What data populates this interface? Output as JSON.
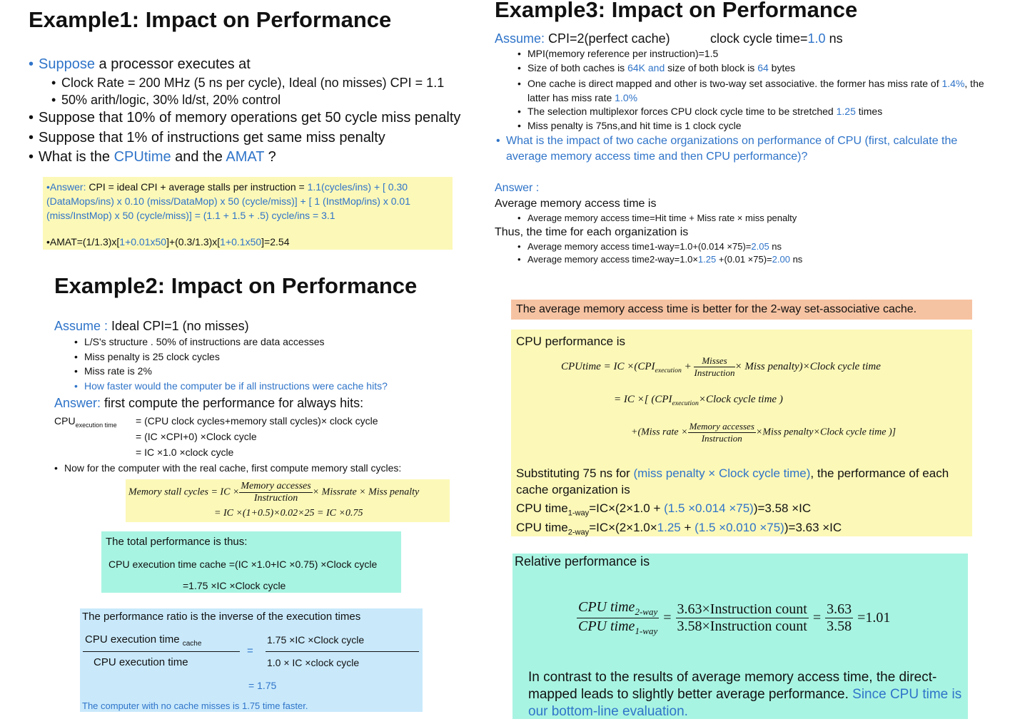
{
  "example1": {
    "title": "Example1: Impact on Performance",
    "lines": [
      [
        "Suppose",
        " a processor executes at"
      ],
      [
        "Clock Rate = 200 MHz (5 ns per cycle), Ideal (no misses) CPI = 1.1"
      ],
      [
        "50% arith/logic, 30% ld/st, 20% control"
      ],
      [
        "Suppose that 10% of memory operations get 50 cycle miss penalty"
      ],
      [
        "Suppose that 1% of instructions get same miss penalty"
      ],
      [
        "What is the ",
        "CPUtime",
        " and the ",
        "AMAT",
        " ?"
      ]
    ],
    "answer": [
      "•Answer:",
      " CPI = ideal CPI + average stalls per instruction = ",
      "1.1(cycles/ins)  + [ 0.30 (DataMops/ins) x 0.10 (miss/DataMop) x 50 (cycle/miss)]  + [ 1 (InstMop/ins) x 0.01 (miss/InstMop) x 50 (cycle/miss)] = (1.1 +  1.5 + .5) cycle/ins = 3.1"
    ],
    "amat": [
      "•AMAT=(1/1.3)x[",
      "1+0.01x50",
      "]+(0.3/1.3)x[",
      "1+0.1x50",
      "]=2.54"
    ]
  },
  "example2": {
    "title": "Example2: Impact on Performance",
    "assume": [
      "Assume :",
      " Ideal CPI=1 (no misses)"
    ],
    "bullets": [
      "L/S's structure . 50% of instructions are data accesses",
      "Miss penalty is 25 clock cycles",
      "Miss rate is 2%",
      "How faster would the computer be if all instructions were cache hits?"
    ],
    "answer": [
      "Answer:",
      " first compute the performance for always hits:"
    ],
    "cpu_label": [
      "CPU",
      "execution time"
    ],
    "equations": [
      "= (CPU clock cycles+memory stall cycles)× clock cycle",
      "= (IC ×CPI+0) ×Clock cycle",
      "= IC ×1.0 ×clock cycle"
    ],
    "now": "Now for the computer with the real cache, first compute memory stall cycles:",
    "stall": {
      "lhs": "Memory stall cycles = IC ×",
      "num": "Memory accesses",
      "den": "Instruction",
      "rhs": "× Missrate × Miss penalty",
      "line2": "= IC ×(1+0.5)×0.02×25 = IC ×0.75"
    },
    "total": [
      "The total performance is thus:",
      "CPU execution time cache =(IC ×1.0+IC ×0.75) ×Clock cycle",
      "=1.75 ×IC ×Clock cycle"
    ],
    "ratio": {
      "title": "The performance ratio is the inverse of the execution times",
      "num_left": [
        "CPU execution time ",
        "cache"
      ],
      "den_left": "CPU execution time",
      "eq": "=",
      "num_right": "1.75 ×IC ×Clock cycle",
      "den_right": "1.0 × IC ×clock cycle",
      "result": "= 1.75",
      "note": "The computer with no cache misses is 1.75 time faster."
    }
  },
  "example3": {
    "title": "Example3: Impact on Performance",
    "assume": [
      "Assume:",
      "  CPI=2(perfect cache)",
      "clock cycle time=",
      "1.0",
      " ns"
    ],
    "bullets": [
      [
        "MPI(memory reference per instruction)=1.5"
      ],
      [
        "Size of both caches is ",
        "64K and",
        " size of both block is ",
        "64",
        " bytes"
      ],
      [
        "One cache is direct mapped and other is two-way set associative. the former has miss rate of ",
        "1.4%",
        ", the latter has miss rate ",
        "1.0%"
      ],
      [
        "The selection multiplexor forces CPU clock cycle time to be stretched ",
        "1.25",
        " times"
      ],
      [
        "Miss penalty is 75ns,and hit time is 1 clock cycle"
      ]
    ],
    "question": "What is the impact of two cache organizations on performance of CPU (first, calculate the average memory access time and then CPU performance)?",
    "answer_label": "Answer :",
    "amat_head": "Average memory access time is",
    "amat_def": "Average memory access time=Hit time + Miss rate × miss penalty",
    "thus": "Thus, the time for each organization is",
    "time1": [
      "Average memory access time1-way=1.0+(0.014 ×75)=",
      "2.05",
      " ns"
    ],
    "time2": [
      "Average memory access time2-way=1.0×",
      "1.25",
      " +(0.01 ×75)=",
      "2.00",
      " ns"
    ],
    "better": "The average memory access time is better for the 2-way set-associative cache.",
    "perf": {
      "head": "CPU performance is",
      "f1": [
        "CPUtime = IC ×(",
        "CPI",
        "execution",
        " + ",
        "Misses",
        "Instruction",
        "× Miss penalty",
        ")×Clock cycle time"
      ],
      "f2": [
        "= IC ×[ (",
        "CPI",
        "execution",
        "×Clock cycle time )"
      ],
      "f3": [
        "+(Miss rate ×",
        "Memory accesses",
        "Instruction",
        "×Miss penalty×Clock cycle time )]"
      ],
      "subst": [
        "Substituting 75 ns for ",
        "(miss penalty × Clock cycle time)",
        ", the performance of each cache organization is"
      ],
      "t1": [
        "CPU time",
        "1-way",
        "=IC×(2×1.0 + ",
        "(1.5 ×0.014 ×75)",
        ")=3.58 ×IC"
      ],
      "t2": [
        "CPU time",
        "2-way",
        "=IC×(2×1.0×",
        "1.25",
        " + ",
        "(1.5 ×0.010 ×75)",
        ")=3.63 ×IC"
      ]
    },
    "relative": {
      "head": "Relative performance is",
      "lnum": [
        "CPU time",
        "2-way"
      ],
      "lden": [
        "CPU time",
        "1-way"
      ],
      "mnum": "3.63×Instruction count",
      "mden": "3.58×Instruction count",
      "eq": "=",
      "rnum": "3.63",
      "rden": "3.58",
      "result": "=1.01",
      "conclusion": [
        "In contrast to the results of average memory access time, the direct-mapped leads to slightly better average performance. ",
        "Since CPU time is our bottom-line evaluation."
      ]
    }
  }
}
